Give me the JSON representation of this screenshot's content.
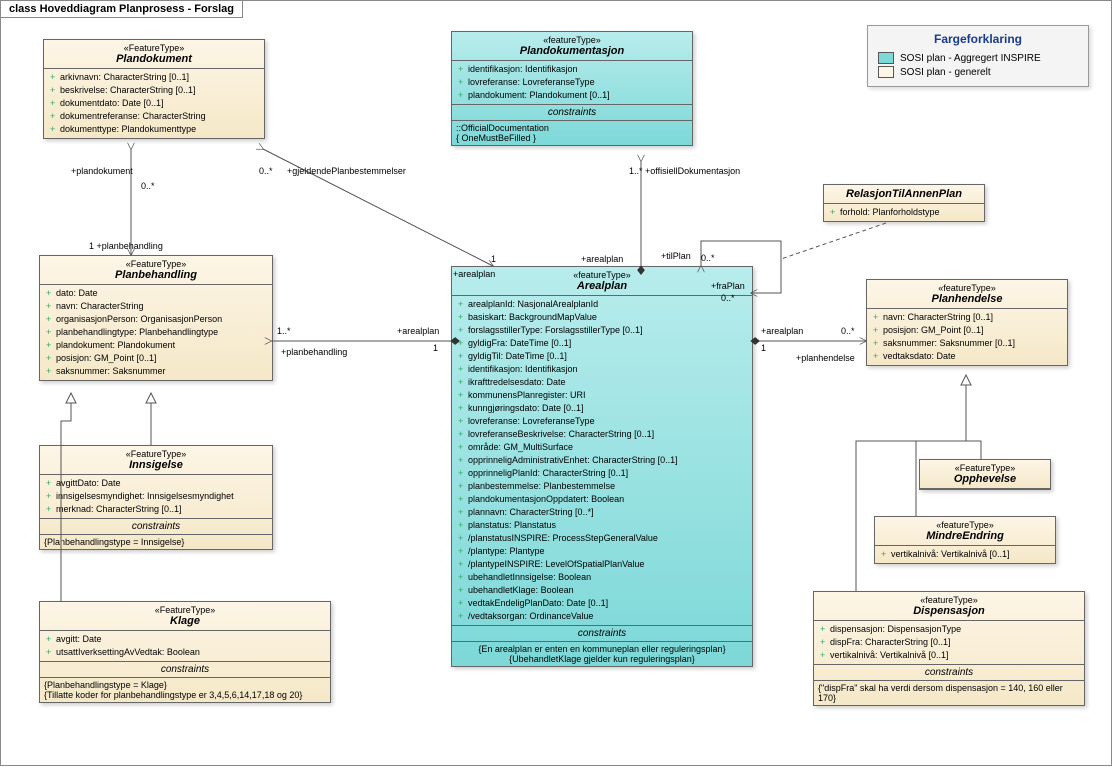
{
  "diagram_title": "class Hoveddiagram Planprosess - Forslag",
  "legend": {
    "title": "Fargeforklaring",
    "items": [
      {
        "color": "#7dd8d8",
        "label": "SOSI plan - Aggregert INSPIRE"
      },
      {
        "color": "#fdf5e6",
        "label": "SOSI plan - generelt"
      }
    ]
  },
  "boxes": {
    "plandokument": {
      "stereo": "«FeatureType»",
      "name": "Plandokument",
      "attrs": [
        "arkivnavn: CharacterString [0..1]",
        "beskrivelse: CharacterString [0..1]",
        "dokumentdato: Date [0..1]",
        "dokumentreferanse: CharacterString",
        "dokumenttype: Plandokumenttype"
      ]
    },
    "plandokumentasjon": {
      "stereo": "«featureType»",
      "name": "Plandokumentasjon",
      "attrs": [
        "identifikasjon: Identifikasjon",
        "lovreferanse: LovreferanseType",
        "plandokument: Plandokument [0..1]"
      ],
      "constr_head": "::OfficialDocumentation",
      "constr_body": "{ OneMustBeFilled }"
    },
    "relasjon": {
      "name": "RelasjonTilAnnenPlan",
      "attrs": [
        "forhold: Planforholdstype"
      ]
    },
    "planbehandling": {
      "stereo": "«FeatureType»",
      "name": "Planbehandling",
      "attrs": [
        "dato: Date",
        "navn: CharacterString",
        "organisasjonPerson: OrganisasjonPerson",
        "planbehandlingtype: Planbehandlingtype",
        "plandokument: Plandokument",
        "posisjon: GM_Point [0..1]",
        "saksnummer: Saksnummer"
      ]
    },
    "arealplan": {
      "stereo": "«featureType»",
      "name": "Arealplan",
      "attrs": [
        "arealplanId: NasjonalArealplanId",
        "basiskart: BackgroundMapValue",
        "forslagsstillerType: ForslagsstillerType [0..1]",
        "gyldigFra: DateTime [0..1]",
        "gyldigTil: DateTime [0..1]",
        "identifikasjon: Identifikasjon",
        "ikrafttredelsesdato: Date",
        "kommunensPlanregister: URI",
        "kunngjøringsdato: Date [0..1]",
        "lovreferanse: LovreferanseType",
        "lovreferanseBeskrivelse: CharacterString [0..1]",
        "område: GM_MultiSurface",
        "opprinneligAdministrativEnhet: CharacterString [0..1]",
        "opprinneligPlanId: CharacterString [0..1]",
        "planbestemmelse: Planbestemmelse",
        "plandokumentasjonOppdatert: Boolean",
        "plannavn: CharacterString [0..*]",
        "planstatus: Planstatus",
        "/planstatusINSPIRE: ProcessStepGeneralValue",
        "/plantype: Plantype",
        "/plantypeINSPIRE: LevelOfSpatialPlanValue",
        "ubehandletInnsigelse: Boolean",
        "ubehandletKlage: Boolean",
        "vedtakEndeligPlanDato: Date [0..1]",
        "/vedtaksorgan: OrdinanceValue"
      ],
      "constr": "{En arealplan er enten en kommuneplan eller reguleringsplan}\n{UbehandletKlage gjelder kun reguleringsplan}"
    },
    "planhendelse": {
      "stereo": "«featureType»",
      "name": "Planhendelse",
      "attrs": [
        "navn: CharacterString [0..1]",
        "posisjon: GM_Point [0..1]",
        "saksnummer: Saksnummer [0..1]",
        "vedtaksdato: Date"
      ]
    },
    "innsigelse": {
      "stereo": "«FeatureType»",
      "name": "Innsigelse",
      "attrs": [
        "avgittDato: Date",
        "innsigelsesmyndighet: Innsigelsesmyndighet",
        "merknad: CharacterString [0..1]"
      ],
      "constr": "{Planbehandlingstype = Innsigelse}"
    },
    "klage": {
      "stereo": "«FeatureType»",
      "name": "Klage",
      "attrs": [
        "avgitt: Date",
        "utsattIverksettingAvVedtak: Boolean"
      ],
      "constr": "{Planbehandlingstype = Klage}\n{Tillatte koder for planbehandlingstype er 3,4,5,6,14,17,18 og 20}"
    },
    "opphevelse": {
      "stereo": "«FeatureType»",
      "name": "Opphevelse"
    },
    "mindreendring": {
      "stereo": "«featureType»",
      "name": "MindreEndring",
      "attrs": [
        "vertikalnivå: Vertikalnivå [0..1]"
      ]
    },
    "dispensasjon": {
      "stereo": "«featureType»",
      "name": "Dispensasjon",
      "attrs": [
        "dispensasjon: DispensasjonType",
        "dispFra: CharacterString [0..1]",
        "vertikalnivå: Vertikalnivå [0..1]"
      ],
      "constr": "{\"dispFra\" skal ha verdi dersom dispensasjon = 140, 160 eller 170}"
    }
  },
  "labels": {
    "l1": "+plandokument",
    "l2": "0..*",
    "l3": "0..*",
    "l4": "+gjeldendePlanbestemmelser",
    "l5": "1  +planbehandling",
    "l6": "1..*",
    "l7": "1..*  +offisiellDokumentasjon",
    "l8": "1",
    "l9": "+arealplan",
    "l10": "+arealplan",
    "l11": "+tilPlan",
    "l12": "0..*",
    "l13": "+fraPlan",
    "l14": "0..*",
    "l15": "1..*",
    "l16": "+arealplan",
    "l17": "1",
    "l18": "+planbehandling",
    "l19": "+arealplan",
    "l20": "1",
    "l21": "0..*",
    "l22": "+planhendelse"
  },
  "colors": {
    "cream": "#f5e8c8",
    "aqua": "#7dd8d8",
    "line": "#555"
  }
}
